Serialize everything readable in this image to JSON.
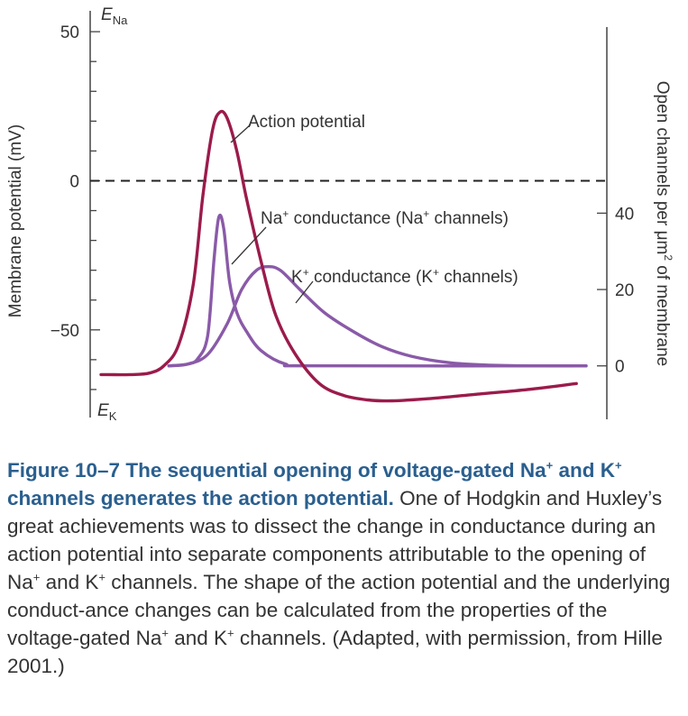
{
  "chart_data": {
    "type": "line",
    "left_axis": {
      "label": "Membrane potential (mV)",
      "range": [
        -80,
        57
      ],
      "ticks": [
        {
          "value": 50,
          "label": "50"
        },
        {
          "value": 0,
          "label": "0"
        },
        {
          "value": -50,
          "label": "−50"
        }
      ],
      "top_marker": {
        "label": "E",
        "sub": "Na"
      },
      "bottom_marker": {
        "label": "E",
        "sub": "K"
      }
    },
    "right_axis": {
      "label_main": "Open channels per μm",
      "label_sup": "2",
      "label_tail": " of membrane",
      "unit": "channels per μm²",
      "range": [
        -14,
        93
      ],
      "ticks": [
        {
          "value": 40,
          "label": "40"
        },
        {
          "value": 20,
          "label": "20"
        },
        {
          "value": 0,
          "label": "0"
        }
      ]
    },
    "reference_line": {
      "axis": "left",
      "value": 0,
      "style": "dashed"
    },
    "time_range": [
      0,
      100
    ],
    "series": [
      {
        "name": "Action potential",
        "axis": "left",
        "color": "#9b1b4b",
        "points": [
          [
            0,
            -65
          ],
          [
            6,
            -65
          ],
          [
            10,
            -64.5
          ],
          [
            13,
            -62
          ],
          [
            16,
            -55
          ],
          [
            19,
            -35
          ],
          [
            21,
            -5
          ],
          [
            23,
            17
          ],
          [
            24.5,
            23
          ],
          [
            26,
            21
          ],
          [
            28,
            10
          ],
          [
            30,
            -6
          ],
          [
            33,
            -27
          ],
          [
            36,
            -45
          ],
          [
            40,
            -58
          ],
          [
            45,
            -68
          ],
          [
            50,
            -72
          ],
          [
            55,
            -73.5
          ],
          [
            60,
            -73.8
          ],
          [
            68,
            -73
          ],
          [
            78,
            -71.5
          ],
          [
            88,
            -70
          ],
          [
            98,
            -68
          ]
        ]
      },
      {
        "name": "Na+ conductance (Na+ channels)",
        "axis": "right",
        "color": "#8a5aa8",
        "points": [
          [
            14,
            0
          ],
          [
            18,
            0.5
          ],
          [
            20,
            2
          ],
          [
            22,
            8
          ],
          [
            23.3,
            28
          ],
          [
            24.3,
            39
          ],
          [
            25.3,
            36
          ],
          [
            26.5,
            22
          ],
          [
            28,
            14
          ],
          [
            30,
            9
          ],
          [
            33,
            4
          ],
          [
            38,
            0.5
          ],
          [
            44,
            0
          ],
          [
            100,
            0
          ]
        ]
      },
      {
        "name": "K+ conductance (K+ channels)",
        "axis": "right",
        "color": "#8a5aa8",
        "points": [
          [
            14,
            0
          ],
          [
            18,
            0.5
          ],
          [
            22,
            3
          ],
          [
            26,
            11
          ],
          [
            29,
            20
          ],
          [
            32,
            25
          ],
          [
            34.5,
            26
          ],
          [
            37,
            25
          ],
          [
            41,
            20
          ],
          [
            46,
            14
          ],
          [
            52,
            9
          ],
          [
            58,
            5
          ],
          [
            64,
            2.5
          ],
          [
            72,
            0.8
          ],
          [
            80,
            0.2
          ],
          [
            90,
            0
          ],
          [
            100,
            0
          ]
        ]
      }
    ],
    "annotations": [
      {
        "parts": [
          {
            "t": "Action potential"
          }
        ]
      },
      {
        "parts": [
          {
            "t": "Na"
          },
          {
            "t": "+",
            "sup": true
          },
          {
            "t": " conductance (Na"
          },
          {
            "t": "+",
            "sup": true
          },
          {
            "t": " channels)"
          }
        ]
      },
      {
        "parts": [
          {
            "t": "K"
          },
          {
            "t": "+",
            "sup": true
          },
          {
            "t": " conductance (K"
          },
          {
            "t": "+",
            "sup": true
          },
          {
            "t": " channels)"
          }
        ]
      }
    ]
  },
  "caption": {
    "figure_number": "Figure 10–7",
    "title_parts": [
      {
        "t": "The sequential opening of voltage-gated Na"
      },
      {
        "t": "+",
        "sup": true
      },
      {
        "t": " and K"
      },
      {
        "t": "+",
        "sup": true
      },
      {
        "t": " channels generates the action potential."
      }
    ],
    "body_parts": [
      {
        "t": "One of Hodgkin and Huxley’s great achievements was to dissect the change in conductance during an action potential into separate components attributable to the opening of Na"
      },
      {
        "t": "+",
        "sup": true
      },
      {
        "t": " and K"
      },
      {
        "t": "+",
        "sup": true
      },
      {
        "t": " channels. The shape of the action potential and the underlying conduct-ance changes can be calculated from the properties of the voltage-gated Na"
      },
      {
        "t": "+",
        "sup": true
      },
      {
        "t": " and K"
      },
      {
        "t": "+",
        "sup": true
      },
      {
        "t": " channels. (Adapted, with permission, from Hille 2001.)"
      }
    ]
  }
}
